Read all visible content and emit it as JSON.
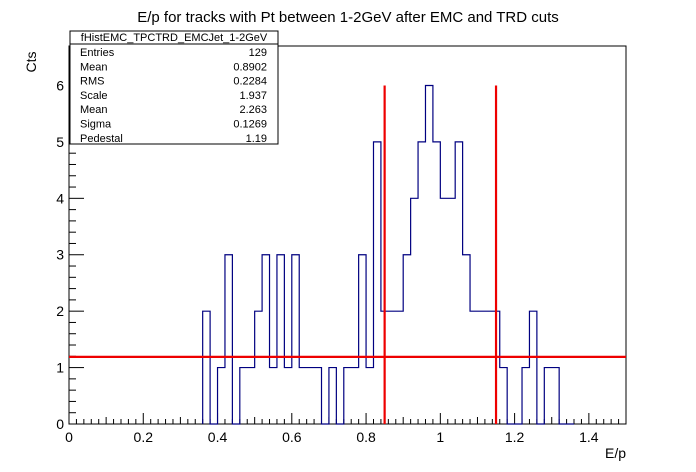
{
  "chart_data": {
    "type": "histogram",
    "title": "E/p for tracks with Pt between 1-2GeV after EMC and TRD cuts",
    "xlabel": "E/p",
    "ylabel": "Cts",
    "xlim": [
      0,
      1.5
    ],
    "ylim": [
      0,
      6.7
    ],
    "x_ticks": [
      "0",
      "0.2",
      "0.4",
      "0.6",
      "0.8",
      "1",
      "1.2",
      "1.4"
    ],
    "y_ticks": [
      "0",
      "1",
      "2",
      "3",
      "4",
      "5",
      "6"
    ],
    "bin_width": 0.02,
    "bin_low_edges": [
      0.36,
      0.38,
      0.4,
      0.42,
      0.44,
      0.46,
      0.48,
      0.5,
      0.52,
      0.54,
      0.56,
      0.58,
      0.6,
      0.62,
      0.64,
      0.66,
      0.68,
      0.7,
      0.72,
      0.74,
      0.76,
      0.78,
      0.8,
      0.82,
      0.84,
      0.86,
      0.88,
      0.9,
      0.92,
      0.94,
      0.96,
      0.98,
      1.0,
      1.02,
      1.04,
      1.06,
      1.08,
      1.1,
      1.12,
      1.14,
      1.16,
      1.18,
      1.2,
      1.22,
      1.24,
      1.26,
      1.28,
      1.3,
      1.32,
      1.34
    ],
    "counts": [
      2,
      0,
      1,
      3,
      0,
      1,
      1,
      2,
      3,
      1,
      3,
      1,
      3,
      1,
      1,
      1,
      0,
      1,
      0,
      1,
      1,
      3,
      1,
      5,
      2,
      2,
      2,
      3,
      4,
      5,
      6,
      5,
      4,
      4,
      5,
      3,
      2,
      2,
      2,
      2,
      1,
      0,
      0,
      1,
      2,
      0,
      1,
      1,
      0,
      0
    ],
    "series": [
      {
        "name": "fHistEMC_TPCTRD_EMCJet_1-2GeV",
        "color": "#000080"
      }
    ],
    "cut_lines": {
      "color": "#ee0000",
      "vertical_x": [
        0.85,
        1.15
      ],
      "vertical_top": 6.0,
      "horizontal_y": 1.19
    },
    "stats_box": {
      "title": "fHistEMC_TPCTRD_EMCJet_1-2GeV",
      "rows": [
        {
          "label": "Entries",
          "value": "129"
        },
        {
          "label": "Mean",
          "value": "0.8902"
        },
        {
          "label": "RMS",
          "value": "0.2284"
        },
        {
          "label": "Scale",
          "value": "1.937"
        },
        {
          "label": "Mean",
          "value": "2.263"
        },
        {
          "label": "Sigma",
          "value": "0.1269"
        },
        {
          "label": "Pedestal",
          "value": "1.19"
        }
      ]
    }
  }
}
